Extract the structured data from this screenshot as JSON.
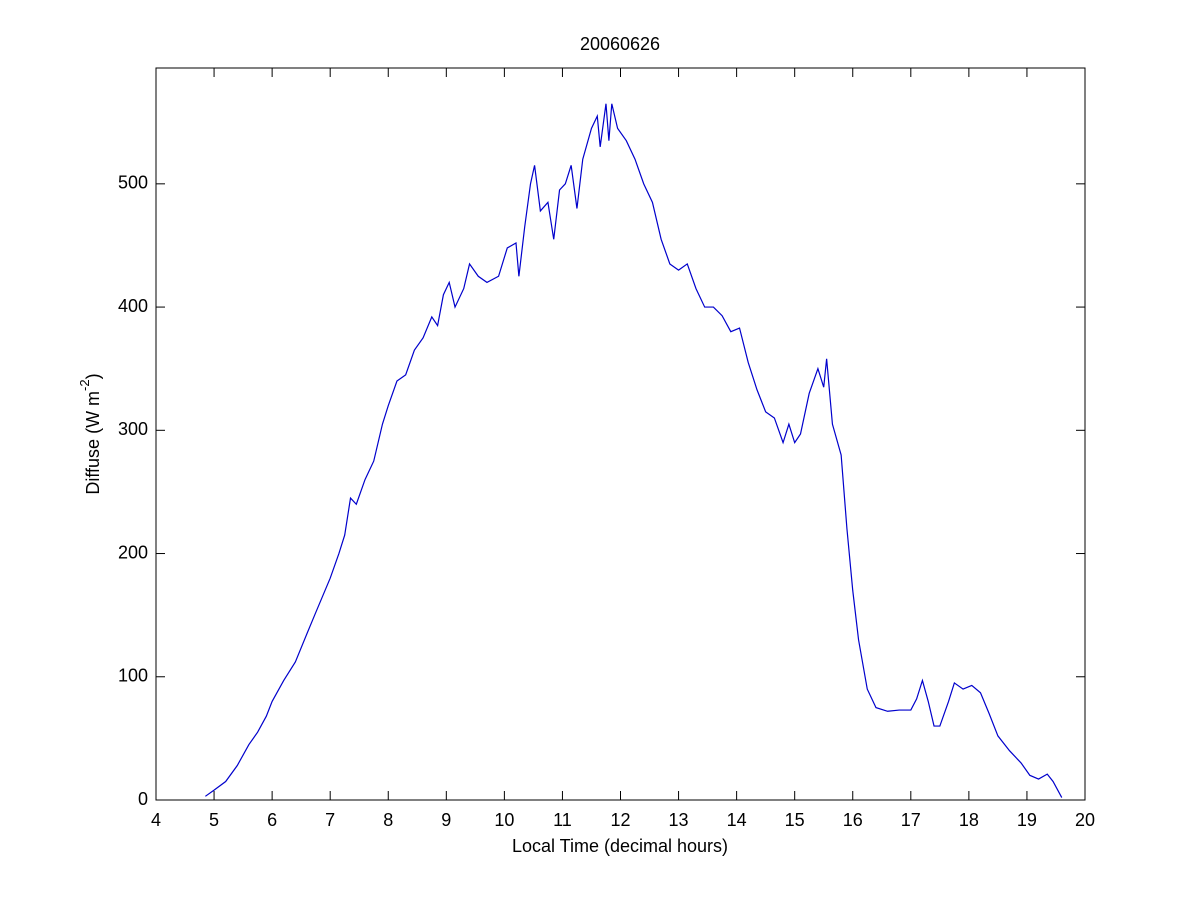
{
  "chart_data": {
    "type": "line",
    "title": "20060626",
    "xlabel": "Local Time (decimal hours)",
    "ylabel": {
      "text": "Diffuse (W m",
      "superscript": "-2",
      "suffix": ")"
    },
    "xlim": [
      4,
      20
    ],
    "xticks": [
      4,
      5,
      6,
      7,
      8,
      9,
      10,
      11,
      12,
      13,
      14,
      15,
      16,
      17,
      18,
      19,
      20
    ],
    "ylim": [
      0,
      594
    ],
    "yticks": [
      0,
      100,
      200,
      300,
      400,
      500
    ],
    "grid": false,
    "series": [
      {
        "color": "#0000cc",
        "x": [
          4.85,
          5.0,
          5.2,
          5.4,
          5.6,
          5.75,
          5.9,
          6.0,
          6.2,
          6.4,
          6.6,
          6.75,
          7.0,
          7.15,
          7.25,
          7.35,
          7.45,
          7.6,
          7.75,
          7.9,
          8.0,
          8.15,
          8.3,
          8.45,
          8.6,
          8.75,
          8.85,
          8.95,
          9.05,
          9.15,
          9.3,
          9.4,
          9.55,
          9.7,
          9.9,
          10.05,
          10.2,
          10.25,
          10.35,
          10.45,
          10.52,
          10.62,
          10.75,
          10.85,
          10.95,
          11.05,
          11.15,
          11.25,
          11.35,
          11.5,
          11.6,
          11.65,
          11.75,
          11.8,
          11.85,
          11.95,
          12.1,
          12.25,
          12.4,
          12.55,
          12.7,
          12.85,
          13.0,
          13.15,
          13.3,
          13.45,
          13.6,
          13.75,
          13.9,
          14.05,
          14.2,
          14.35,
          14.5,
          14.65,
          14.8,
          14.9,
          15.0,
          15.1,
          15.25,
          15.4,
          15.5,
          15.55,
          15.65,
          15.8,
          15.9,
          16.0,
          16.1,
          16.25,
          16.4,
          16.6,
          16.8,
          17.0,
          17.1,
          17.2,
          17.3,
          17.4,
          17.5,
          17.65,
          17.75,
          17.9,
          18.05,
          18.2,
          18.35,
          18.5,
          18.7,
          18.9,
          19.05,
          19.2,
          19.35,
          19.45,
          19.6
        ],
        "values": [
          3,
          8,
          15,
          28,
          45,
          55,
          68,
          80,
          97,
          112,
          135,
          152,
          180,
          200,
          215,
          245,
          240,
          260,
          275,
          305,
          320,
          340,
          345,
          365,
          375,
          392,
          385,
          410,
          420,
          400,
          415,
          435,
          425,
          420,
          425,
          448,
          452,
          425,
          465,
          500,
          515,
          478,
          485,
          455,
          495,
          500,
          515,
          480,
          520,
          545,
          555,
          530,
          565,
          535,
          565,
          545,
          535,
          520,
          500,
          485,
          455,
          435,
          430,
          435,
          415,
          400,
          400,
          393,
          380,
          383,
          355,
          333,
          315,
          310,
          290,
          305,
          290,
          297,
          330,
          350,
          335,
          358,
          305,
          280,
          220,
          170,
          130,
          90,
          75,
          72,
          73,
          73,
          82,
          97,
          80,
          60,
          60,
          80,
          95,
          90,
          93,
          87,
          70,
          52,
          40,
          30,
          20,
          17,
          21,
          15,
          2
        ]
      }
    ]
  }
}
